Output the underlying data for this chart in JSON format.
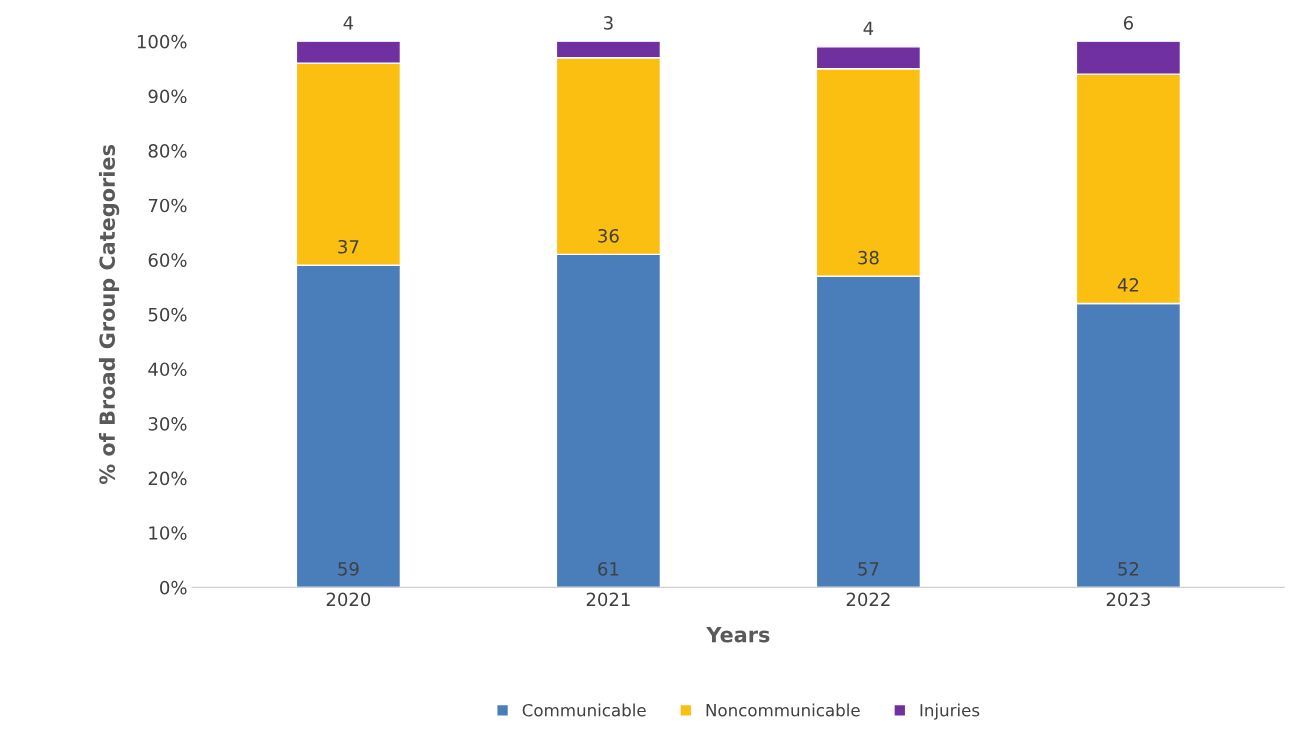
{
  "chart_data": {
    "type": "bar",
    "stacked": true,
    "xlabel": "Years",
    "ylabel": "% of Broad Group Categories",
    "categories": [
      "2020",
      "2021",
      "2022",
      "2023"
    ],
    "series": [
      {
        "name": "Communicable",
        "color": "#4a7ebb",
        "values": [
          59,
          61,
          57,
          52
        ]
      },
      {
        "name": "Noncommunicable",
        "color": "#fbbf12",
        "values": [
          37,
          36,
          38,
          42
        ]
      },
      {
        "name": "Injuries",
        "color": "#7030a0",
        "values": [
          4,
          3,
          4,
          6
        ]
      }
    ],
    "ylim": [
      0,
      100
    ],
    "yticks": [
      {
        "value": 0,
        "label": "0%"
      },
      {
        "value": 10,
        "label": "10%"
      },
      {
        "value": 20,
        "label": "20%"
      },
      {
        "value": 30,
        "label": "30%"
      },
      {
        "value": 40,
        "label": "40%"
      },
      {
        "value": 50,
        "label": "50%"
      },
      {
        "value": 60,
        "label": "60%"
      },
      {
        "value": 70,
        "label": "70%"
      },
      {
        "value": 80,
        "label": "80%"
      },
      {
        "value": 90,
        "label": "90%"
      },
      {
        "value": 100,
        "label": "100%"
      }
    ],
    "data_labels": true,
    "legend": "bottom",
    "grid": false
  }
}
